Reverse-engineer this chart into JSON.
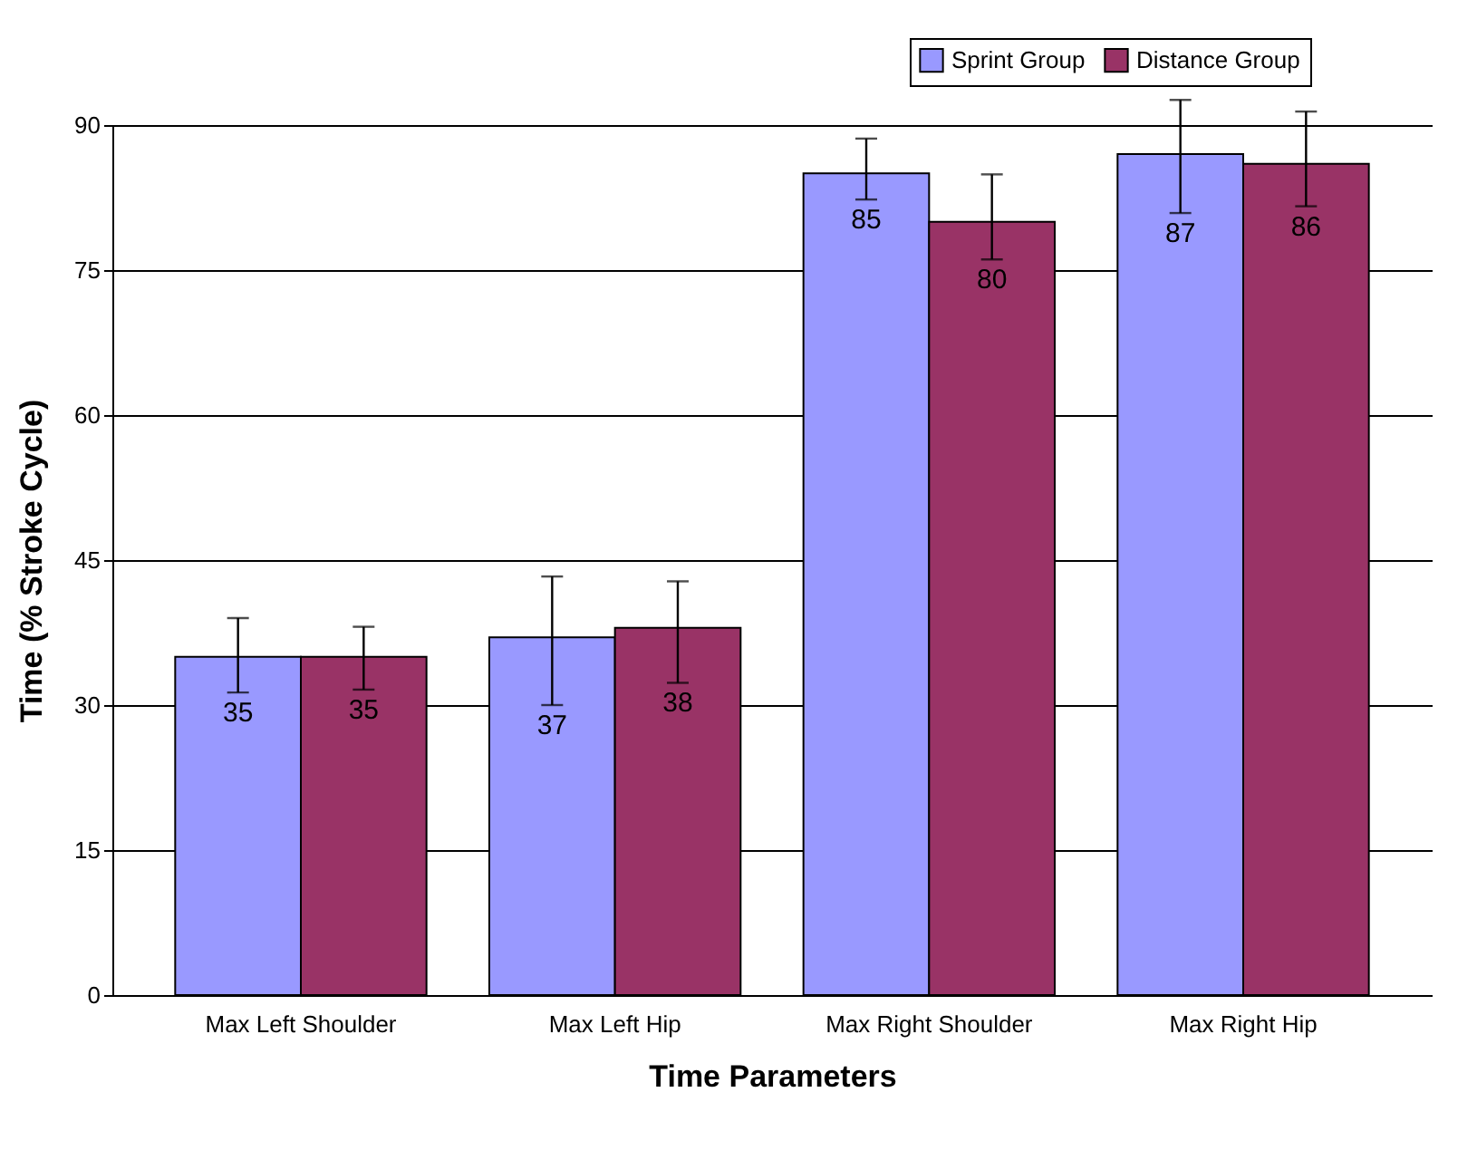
{
  "chart_data": {
    "type": "bar",
    "xlabel": "Time Parameters",
    "ylabel": "Time (% Stroke Cycle)",
    "categories": [
      "Max Left Shoulder",
      "Max Left Hip",
      "Max Right Shoulder",
      "Max Right Hip"
    ],
    "series": [
      {
        "name": "Sprint Group",
        "color": "#9999ff",
        "values": [
          35,
          37,
          85,
          87
        ],
        "errors": [
          [
            31.3,
            39.0
          ],
          [
            30.0,
            43.3
          ],
          [
            82.3,
            88.6
          ],
          [
            80.9,
            92.6
          ]
        ]
      },
      {
        "name": "Distance Group",
        "color": "#993366",
        "values": [
          35,
          38,
          80,
          86
        ],
        "errors": [
          [
            31.6,
            38.1
          ],
          [
            32.3,
            42.8
          ],
          [
            76.1,
            84.9
          ],
          [
            81.6,
            91.4
          ]
        ]
      }
    ],
    "ylim": [
      0,
      90
    ],
    "yticks": [
      0,
      15,
      30,
      45,
      60,
      75,
      90
    ],
    "grid": "y",
    "legend": "top right",
    "data_labels": true
  }
}
